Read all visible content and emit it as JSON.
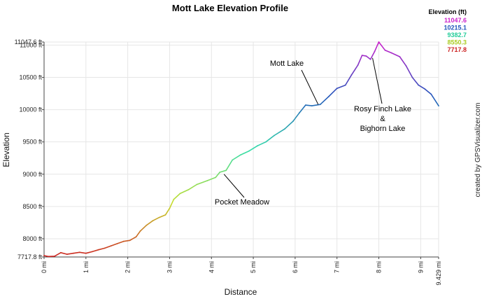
{
  "chart_data": {
    "type": "line",
    "title": "Mott Lake Elevation Profile",
    "xlabel": "Distance",
    "ylabel": "Elevation",
    "xlim": [
      0,
      9.429
    ],
    "ylim": [
      7717.8,
      11047.6
    ],
    "x_ticks": [
      {
        "value": 0,
        "label": "0 mi"
      },
      {
        "value": 1,
        "label": "1 mi"
      },
      {
        "value": 2,
        "label": "2 mi"
      },
      {
        "value": 3,
        "label": "3 mi"
      },
      {
        "value": 4,
        "label": "4 mi"
      },
      {
        "value": 5,
        "label": "5 mi"
      },
      {
        "value": 6,
        "label": "6 mi"
      },
      {
        "value": 7,
        "label": "7 mi"
      },
      {
        "value": 8,
        "label": "8 mi"
      },
      {
        "value": 9,
        "label": "9 mi"
      },
      {
        "value": 9.429,
        "label": "9.429 mi"
      }
    ],
    "y_ticks": [
      {
        "value": 7717.8,
        "label": "7717.8 ft"
      },
      {
        "value": 8000,
        "label": "8000 ft"
      },
      {
        "value": 8500,
        "label": "8500 ft"
      },
      {
        "value": 9000,
        "label": "9000 ft"
      },
      {
        "value": 9500,
        "label": "9500 ft"
      },
      {
        "value": 10000,
        "label": "10000 ft"
      },
      {
        "value": 10500,
        "label": "10500 ft"
      },
      {
        "value": 11000,
        "label": "11000 ft"
      },
      {
        "value": 11047.6,
        "label": "11047.6 ft"
      }
    ],
    "grid": true,
    "series": [
      {
        "points": [
          [
            0,
            7740
          ],
          [
            0.1,
            7725
          ],
          [
            0.25,
            7730
          ],
          [
            0.4,
            7785
          ],
          [
            0.55,
            7760
          ],
          [
            0.7,
            7775
          ],
          [
            0.85,
            7790
          ],
          [
            1.0,
            7775
          ],
          [
            1.15,
            7800
          ],
          [
            1.3,
            7830
          ],
          [
            1.45,
            7855
          ],
          [
            1.6,
            7890
          ],
          [
            1.75,
            7925
          ],
          [
            1.9,
            7960
          ],
          [
            2.05,
            7975
          ],
          [
            2.2,
            8030
          ],
          [
            2.3,
            8120
          ],
          [
            2.45,
            8210
          ],
          [
            2.6,
            8280
          ],
          [
            2.75,
            8330
          ],
          [
            2.9,
            8370
          ],
          [
            3.0,
            8470
          ],
          [
            3.1,
            8610
          ],
          [
            3.25,
            8700
          ],
          [
            3.45,
            8760
          ],
          [
            3.65,
            8840
          ],
          [
            3.9,
            8900
          ],
          [
            4.1,
            8950
          ],
          [
            4.2,
            9030
          ],
          [
            4.35,
            9060
          ],
          [
            4.5,
            9220
          ],
          [
            4.7,
            9300
          ],
          [
            4.9,
            9360
          ],
          [
            5.1,
            9440
          ],
          [
            5.3,
            9500
          ],
          [
            5.5,
            9600
          ],
          [
            5.75,
            9700
          ],
          [
            5.95,
            9820
          ],
          [
            6.1,
            9950
          ],
          [
            6.25,
            10070
          ],
          [
            6.4,
            10060
          ],
          [
            6.6,
            10080
          ],
          [
            6.8,
            10200
          ],
          [
            7.0,
            10330
          ],
          [
            7.2,
            10380
          ],
          [
            7.35,
            10540
          ],
          [
            7.5,
            10690
          ],
          [
            7.6,
            10840
          ],
          [
            7.7,
            10830
          ],
          [
            7.8,
            10780
          ],
          [
            7.9,
            10900
          ],
          [
            8.0,
            11047.6
          ],
          [
            8.15,
            10920
          ],
          [
            8.3,
            10880
          ],
          [
            8.5,
            10820
          ],
          [
            8.65,
            10680
          ],
          [
            8.8,
            10500
          ],
          [
            8.95,
            10380
          ],
          [
            9.1,
            10320
          ],
          [
            9.25,
            10240
          ],
          [
            9.429,
            10060
          ]
        ]
      }
    ],
    "color_scale_stops": [
      {
        "value": 7717.8,
        "color": "#cc2222"
      },
      {
        "value": 8550.3,
        "color": "#c6dd2a"
      },
      {
        "value": 9382.7,
        "color": "#33ddaa"
      },
      {
        "value": 10215.1,
        "color": "#2255bb"
      },
      {
        "value": 11047.6,
        "color": "#cc22cc"
      }
    ],
    "legend": {
      "title": "Elevation (ft)",
      "placement": "top-right",
      "entries": [
        {
          "label": "11047.6",
          "color": "#cc22cc"
        },
        {
          "label": "10215.1",
          "color": "#2255bb"
        },
        {
          "label": "9382.7",
          "color": "#22cc99"
        },
        {
          "label": "8550.3",
          "color": "#aacc22"
        },
        {
          "label": "7717.8",
          "color": "#cc2222"
        }
      ]
    },
    "annotations": [
      {
        "lines": [
          "Mott Lake"
        ],
        "target": [
          6.55,
          10080
        ]
      },
      {
        "lines": [
          "Rosy Finch Lake",
          "&",
          "Bighorn Lake"
        ],
        "target": [
          7.85,
          10800
        ]
      },
      {
        "lines": [
          "Pocket Meadow"
        ],
        "target": [
          4.3,
          9000
        ]
      }
    ],
    "credit": "created by GPSVisualizer.com"
  }
}
